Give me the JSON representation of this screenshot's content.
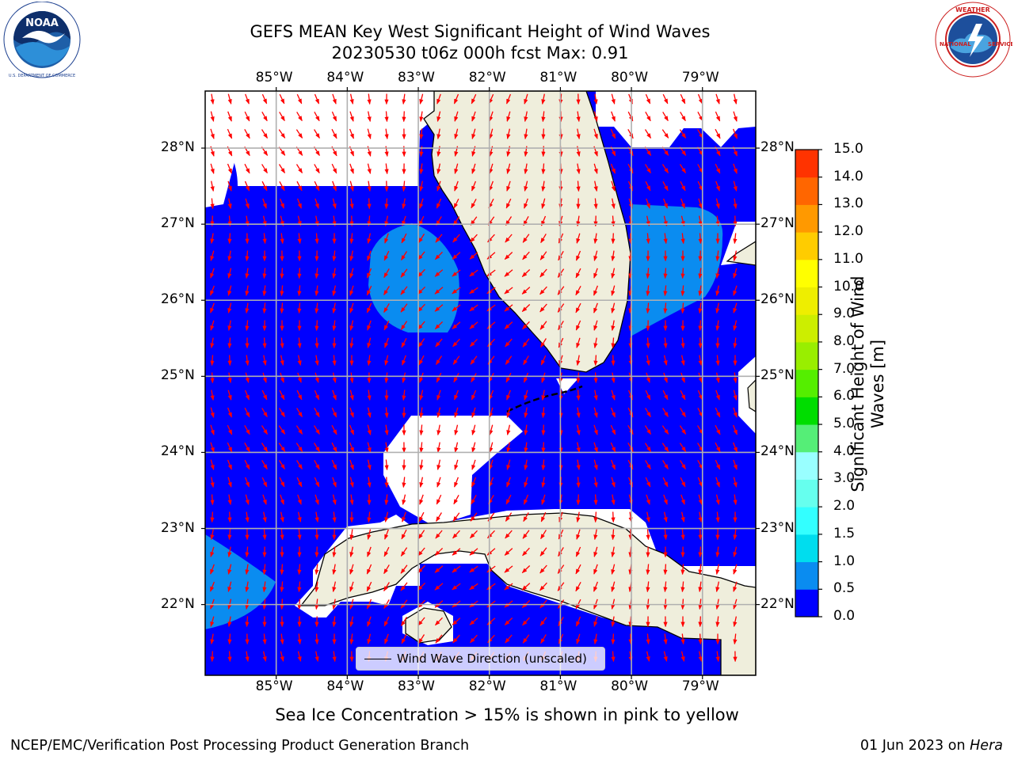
{
  "header": {
    "title_line1": "GEFS MEAN Key West Significant Height of Wind Waves",
    "title_line2": "20230530 t06z 000h fcst   Max: 0.91"
  },
  "logos": {
    "left": {
      "text": "NOAA",
      "ring_text": "NATIONAL OCEANIC AND ATMOSPHERIC ADMINISTRATION · U.S. DEPARTMENT OF COMMERCE",
      "icon": "noaa-logo"
    },
    "right": {
      "ring_text": "NATIONAL WEATHER SERVICE",
      "icon": "nws-logo"
    }
  },
  "map": {
    "lon_labels": [
      "85°W",
      "84°W",
      "83°W",
      "82°W",
      "81°W",
      "80°W",
      "79°W"
    ],
    "lat_labels": [
      "28°N",
      "27°N",
      "26°N",
      "25°N",
      "24°N",
      "23°N",
      "22°N"
    ],
    "lon_range": [
      -86.0,
      -78.25
    ],
    "lat_range": [
      21.07,
      28.75
    ],
    "colors": {
      "ocean_low": "#0000ff",
      "ocean_mid": "#0a8cf0",
      "land": "#efeedc",
      "arrows": "#ff0000",
      "grid": "#b0b0b0"
    }
  },
  "legend": {
    "label": "Wind Wave Direction (unscaled)"
  },
  "colorbar": {
    "title": "Significant Height of Wind Waves [m]",
    "tick_labels": [
      "0.0",
      "0.5",
      "1.0",
      "1.5",
      "2.0",
      "3.0",
      "4.0",
      "5.0",
      "6.0",
      "7.0",
      "8.0",
      "9.0",
      "10.0",
      "11.0",
      "12.0",
      "13.0",
      "14.0",
      "15.0"
    ],
    "colors": [
      "#0000ff",
      "#0a8cf0",
      "#00ddee",
      "#33ffff",
      "#66ffee",
      "#99ffff",
      "#55ee77",
      "#00dd00",
      "#55ee00",
      "#99ee00",
      "#ccee00",
      "#eeee00",
      "#ffff00",
      "#ffcc00",
      "#ff9900",
      "#ff6600",
      "#ff3300"
    ]
  },
  "bottom_note": "Sea Ice Concentration > 15% is shown in pink to yellow",
  "footer": {
    "left": "NCEP/EMC/Verification Post Processing Product Generation Branch",
    "right_date": "01 Jun 2023 on",
    "right_host": "Hera"
  }
}
